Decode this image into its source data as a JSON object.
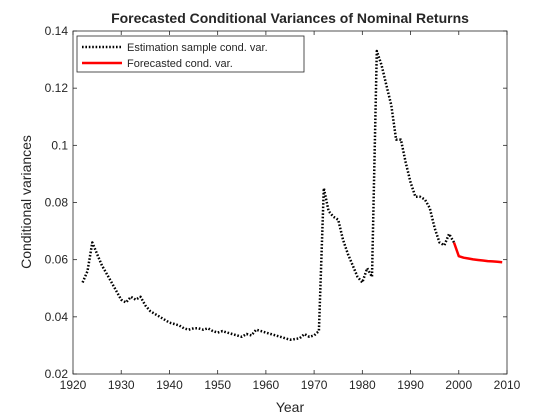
{
  "chart_data": {
    "type": "line",
    "title": "Forecasted Conditional Variances of Nominal Returns",
    "xlabel": "Year",
    "ylabel": "Conditional variances",
    "xlim": [
      1920,
      2010
    ],
    "ylim": [
      0.02,
      0.14
    ],
    "xticks": [
      "1920",
      "1930",
      "1940",
      "1950",
      "1960",
      "1970",
      "1980",
      "1990",
      "2000",
      "2010"
    ],
    "yticks": [
      "0.02",
      "0.04",
      "0.06",
      "0.08",
      "0.1",
      "0.12",
      "0.14"
    ],
    "grid": false,
    "legend_position": "top-left",
    "series": [
      {
        "name": "Estimation sample cond. var.",
        "color": "#000000",
        "style": "dotted",
        "x": [
          1922,
          1923,
          1924,
          1925,
          1926,
          1927,
          1928,
          1929,
          1930,
          1931,
          1932,
          1933,
          1934,
          1935,
          1936,
          1937,
          1938,
          1939,
          1940,
          1941,
          1942,
          1943,
          1944,
          1945,
          1946,
          1947,
          1948,
          1949,
          1950,
          1951,
          1952,
          1953,
          1954,
          1955,
          1956,
          1957,
          1958,
          1959,
          1960,
          1961,
          1962,
          1963,
          1964,
          1965,
          1966,
          1967,
          1968,
          1969,
          1970,
          1971,
          1972,
          1973,
          1974,
          1975,
          1976,
          1977,
          1978,
          1979,
          1980,
          1981,
          1982,
          1983,
          1984,
          1985,
          1986,
          1987,
          1988,
          1989,
          1990,
          1991,
          1992,
          1993,
          1994,
          1995,
          1996,
          1997,
          1998,
          1999
        ],
        "y": [
          0.052,
          0.056,
          0.066,
          0.062,
          0.058,
          0.055,
          0.052,
          0.049,
          0.046,
          0.045,
          0.047,
          0.046,
          0.047,
          0.044,
          0.042,
          0.041,
          0.04,
          0.039,
          0.038,
          0.0375,
          0.037,
          0.036,
          0.0355,
          0.036,
          0.036,
          0.0355,
          0.036,
          0.035,
          0.0345,
          0.035,
          0.0345,
          0.034,
          0.0335,
          0.033,
          0.034,
          0.0335,
          0.0355,
          0.035,
          0.0345,
          0.034,
          0.0335,
          0.033,
          0.0325,
          0.032,
          0.0322,
          0.0325,
          0.034,
          0.033,
          0.0335,
          0.035,
          0.085,
          0.077,
          0.075,
          0.074,
          0.067,
          0.062,
          0.058,
          0.054,
          0.052,
          0.057,
          0.054,
          0.133,
          0.128,
          0.121,
          0.114,
          0.102,
          0.102,
          0.094,
          0.087,
          0.082,
          0.082,
          0.081,
          0.078,
          0.071,
          0.066,
          0.065,
          0.069,
          0.066
        ]
      },
      {
        "name": "Forecasted cond. var.",
        "color": "#ff0000",
        "style": "solid",
        "x": [
          1999,
          2000,
          2001,
          2002,
          2003,
          2004,
          2005,
          2006,
          2007,
          2008,
          2009
        ],
        "y": [
          0.066,
          0.0612,
          0.0607,
          0.0604,
          0.0601,
          0.0599,
          0.0597,
          0.0595,
          0.0594,
          0.0593,
          0.0591
        ]
      }
    ]
  }
}
